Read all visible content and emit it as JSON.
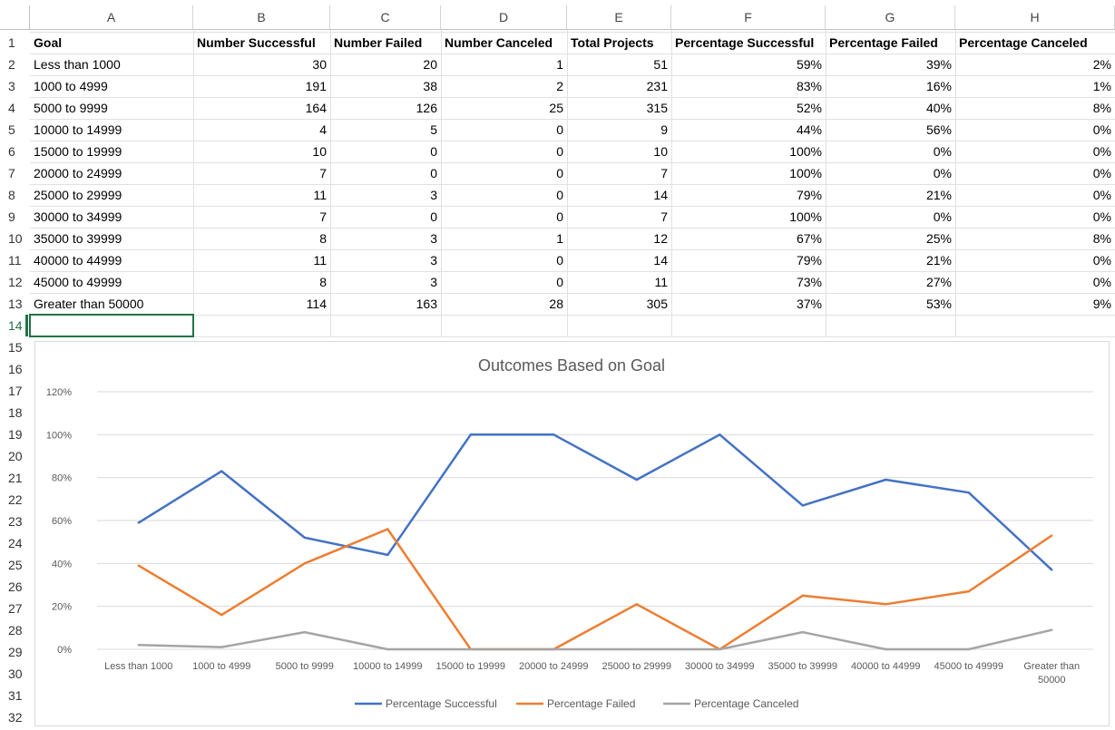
{
  "sheet": {
    "columns": [
      "A",
      "B",
      "C",
      "D",
      "E",
      "F",
      "G",
      "H"
    ],
    "rows": [
      "1",
      "2",
      "3",
      "4",
      "5",
      "6",
      "7",
      "8",
      "9",
      "10",
      "11",
      "12",
      "13",
      "14",
      "15",
      "16",
      "17",
      "18",
      "19",
      "20",
      "21",
      "22",
      "23",
      "24",
      "25",
      "26",
      "27",
      "28",
      "29",
      "30",
      "31",
      "32"
    ],
    "selected_row": "14",
    "headers": [
      "Goal",
      "Number Successful",
      "Number Failed",
      "Number Canceled",
      "Total Projects",
      "Percentage Successful",
      "Percentage Failed",
      "Percentage Canceled"
    ],
    "data": [
      [
        "Less than 1000",
        "30",
        "20",
        "1",
        "51",
        "59%",
        "39%",
        "2%"
      ],
      [
        "1000 to 4999",
        "191",
        "38",
        "2",
        "231",
        "83%",
        "16%",
        "1%"
      ],
      [
        "5000 to 9999",
        "164",
        "126",
        "25",
        "315",
        "52%",
        "40%",
        "8%"
      ],
      [
        "10000 to 14999",
        "4",
        "5",
        "0",
        "9",
        "44%",
        "56%",
        "0%"
      ],
      [
        "15000 to 19999",
        "10",
        "0",
        "0",
        "10",
        "100%",
        "0%",
        "0%"
      ],
      [
        "20000 to 24999",
        "7",
        "0",
        "0",
        "7",
        "100%",
        "0%",
        "0%"
      ],
      [
        "25000 to 29999",
        "11",
        "3",
        "0",
        "14",
        "79%",
        "21%",
        "0%"
      ],
      [
        "30000 to 34999",
        "7",
        "0",
        "0",
        "7",
        "100%",
        "0%",
        "0%"
      ],
      [
        "35000 to 39999",
        "8",
        "3",
        "1",
        "12",
        "67%",
        "25%",
        "8%"
      ],
      [
        "40000 to 44999",
        "11",
        "3",
        "0",
        "14",
        "79%",
        "21%",
        "0%"
      ],
      [
        "45000 to 49999",
        "8",
        "3",
        "0",
        "11",
        "73%",
        "27%",
        "0%"
      ],
      [
        "Greater than 50000",
        "114",
        "163",
        "28",
        "305",
        "37%",
        "53%",
        "9%"
      ]
    ]
  },
  "chart_data": {
    "type": "line",
    "title": "Outcomes Based on Goal",
    "categories": [
      "Less than 1000",
      "1000 to 4999",
      "5000 to 9999",
      "10000 to 14999",
      "15000 to 19999",
      "20000 to 24999",
      "25000 to 29999",
      "30000 to 34999",
      "35000 to 39999",
      "40000 to 44999",
      "45000 to 49999",
      "Greater than 50000"
    ],
    "series": [
      {
        "name": "Percentage Successful",
        "color": "#4472c4",
        "values": [
          59,
          83,
          52,
          44,
          100,
          100,
          79,
          100,
          67,
          79,
          73,
          37
        ]
      },
      {
        "name": "Percentage Failed",
        "color": "#ed7d31",
        "values": [
          39,
          16,
          40,
          56,
          0,
          0,
          21,
          0,
          25,
          21,
          27,
          53
        ]
      },
      {
        "name": "Percentage Canceled",
        "color": "#a5a5a5",
        "values": [
          2,
          1,
          8,
          0,
          0,
          0,
          0,
          0,
          8,
          0,
          0,
          9
        ]
      }
    ],
    "ylim": [
      0,
      120
    ],
    "yticks": [
      "0%",
      "20%",
      "40%",
      "60%",
      "80%",
      "100%",
      "120%"
    ],
    "grid": true,
    "legend": "bottom"
  }
}
